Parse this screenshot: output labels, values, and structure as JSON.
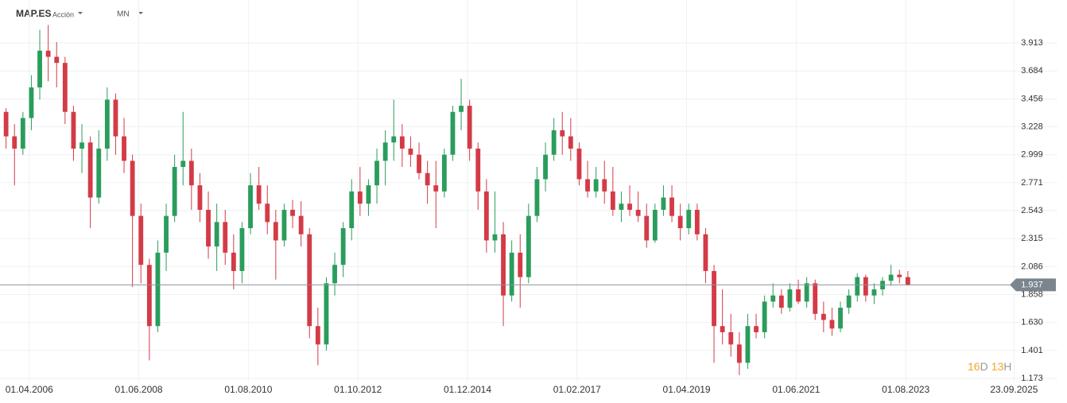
{
  "header": {
    "symbol": "MAP.ES",
    "asset_type": "Acción",
    "interval": "MN"
  },
  "countdown": {
    "days": "16",
    "days_unit": "D",
    "hours": "13",
    "hours_unit": "H"
  },
  "chart_data": {
    "type": "candlestick",
    "open": [
      3.35,
      3.15,
      3.05,
      3.3,
      3.55,
      3.85,
      3.8,
      3.75,
      3.35,
      3.05,
      3.1,
      2.65,
      3.05,
      3.45,
      3.15,
      2.95,
      2.5,
      2.1,
      1.6,
      2.2,
      2.5,
      2.9,
      2.95,
      2.75,
      2.55,
      2.25,
      2.45,
      2.2,
      2.05,
      2.4,
      2.75,
      2.6,
      2.45,
      2.3,
      2.55,
      2.5,
      2.35,
      1.6,
      1.45,
      1.95,
      2.1,
      2.4,
      2.7,
      2.6,
      2.75,
      2.95,
      3.1,
      3.15,
      3.05,
      3.0,
      2.85,
      2.75,
      2.7,
      3.0,
      3.35,
      3.4,
      3.05,
      2.7,
      2.3,
      2.35,
      1.85,
      2.2,
      2.0,
      2.5,
      2.8,
      3.0,
      3.2,
      3.15,
      3.05,
      2.8,
      2.7,
      2.8,
      2.7,
      2.55,
      2.6,
      2.55,
      2.5,
      2.3,
      2.55,
      2.65,
      2.5,
      2.4,
      2.55,
      2.35,
      2.05,
      1.6,
      1.55,
      1.45,
      1.3,
      1.6,
      1.55,
      1.8,
      1.85,
      1.75,
      1.9,
      1.8,
      1.95,
      1.7,
      1.65,
      1.58,
      1.75,
      1.85,
      2.0,
      1.85,
      1.9,
      1.97,
      2.02,
      2.0
    ],
    "high": [
      3.38,
      3.25,
      3.35,
      3.65,
      4.02,
      4.06,
      3.92,
      3.8,
      3.4,
      3.25,
      3.15,
      3.2,
      3.55,
      3.5,
      3.3,
      3.0,
      2.6,
      2.15,
      2.3,
      2.6,
      3.0,
      3.35,
      3.05,
      2.85,
      2.7,
      2.6,
      2.55,
      2.35,
      2.45,
      2.85,
      2.9,
      2.75,
      2.55,
      2.6,
      2.63,
      2.62,
      2.4,
      1.75,
      2.0,
      2.2,
      2.45,
      2.8,
      2.9,
      2.8,
      3.05,
      3.2,
      3.45,
      3.25,
      3.15,
      3.1,
      2.95,
      2.95,
      3.05,
      3.4,
      3.62,
      3.45,
      3.1,
      2.8,
      2.7,
      2.45,
      2.3,
      2.35,
      2.6,
      2.9,
      3.1,
      3.3,
      3.35,
      3.3,
      3.1,
      2.95,
      2.9,
      2.95,
      2.9,
      2.7,
      2.75,
      2.7,
      2.6,
      2.6,
      2.75,
      2.75,
      2.6,
      2.6,
      2.6,
      2.4,
      2.1,
      1.9,
      1.7,
      1.55,
      1.7,
      1.7,
      1.85,
      1.95,
      1.9,
      1.95,
      1.98,
      2.0,
      1.98,
      1.8,
      1.75,
      1.8,
      1.9,
      2.03,
      2.02,
      1.95,
      2.0,
      2.1,
      2.06,
      2.05
    ],
    "low": [
      3.05,
      2.75,
      3.0,
      3.2,
      3.45,
      3.6,
      3.55,
      3.25,
      2.95,
      2.85,
      2.4,
      2.6,
      2.95,
      3.0,
      2.85,
      1.92,
      1.95,
      1.32,
      1.55,
      2.05,
      2.45,
      2.75,
      2.55,
      2.45,
      2.15,
      2.05,
      2.1,
      1.9,
      1.95,
      2.35,
      2.55,
      2.35,
      1.98,
      2.25,
      2.4,
      2.25,
      1.5,
      1.28,
      1.4,
      1.85,
      2.0,
      2.3,
      2.5,
      2.5,
      2.6,
      2.75,
      2.95,
      2.9,
      2.9,
      2.8,
      2.6,
      2.4,
      2.65,
      2.95,
      3.2,
      2.95,
      2.55,
      2.2,
      2.2,
      1.6,
      1.8,
      1.75,
      1.95,
      2.45,
      2.7,
      2.95,
      3.0,
      2.95,
      2.75,
      2.65,
      2.65,
      2.6,
      2.5,
      2.45,
      2.5,
      2.45,
      2.24,
      2.28,
      2.5,
      2.45,
      2.3,
      2.35,
      2.3,
      1.95,
      1.3,
      1.45,
      1.35,
      1.2,
      1.25,
      1.5,
      1.5,
      1.75,
      1.7,
      1.72,
      1.78,
      1.75,
      1.65,
      1.55,
      1.52,
      1.55,
      1.7,
      1.8,
      1.8,
      1.78,
      1.85,
      1.93,
      1.95,
      1.93
    ],
    "close": [
      3.15,
      3.05,
      3.3,
      3.55,
      3.85,
      3.8,
      3.75,
      3.35,
      3.05,
      3.1,
      2.65,
      3.05,
      3.45,
      3.15,
      2.95,
      2.5,
      2.1,
      1.6,
      2.2,
      2.5,
      2.9,
      2.95,
      2.75,
      2.55,
      2.25,
      2.45,
      2.2,
      2.05,
      2.4,
      2.75,
      2.6,
      2.45,
      2.3,
      2.55,
      2.5,
      2.35,
      1.6,
      1.45,
      1.95,
      2.1,
      2.4,
      2.7,
      2.6,
      2.75,
      2.95,
      3.1,
      3.15,
      3.05,
      3.0,
      2.85,
      2.75,
      2.7,
      3.0,
      3.35,
      3.4,
      3.05,
      2.7,
      2.3,
      2.35,
      1.85,
      2.2,
      2.0,
      2.5,
      2.8,
      3.0,
      3.2,
      3.15,
      3.05,
      2.8,
      2.7,
      2.8,
      2.7,
      2.55,
      2.6,
      2.55,
      2.5,
      2.3,
      2.55,
      2.65,
      2.5,
      2.4,
      2.55,
      2.35,
      2.05,
      1.6,
      1.55,
      1.45,
      1.3,
      1.6,
      1.55,
      1.8,
      1.85,
      1.75,
      1.9,
      1.8,
      1.95,
      1.7,
      1.65,
      1.58,
      1.75,
      1.85,
      2.0,
      1.85,
      1.9,
      1.97,
      2.02,
      2.0,
      1.937
    ],
    "up_color": "#2a9d5c",
    "down_color": "#d33b47",
    "last_price": 1.937,
    "xlim": [
      -0.72,
      124.75
    ],
    "xticks": [
      {
        "value": 2.75,
        "label": "01.04.2006"
      },
      {
        "value": 15.75,
        "label": "01.06.2008"
      },
      {
        "value": 28.75,
        "label": "01.08.2010"
      },
      {
        "value": 41.75,
        "label": "01.10.2012"
      },
      {
        "value": 54.75,
        "label": "01.12.2014"
      },
      {
        "value": 67.75,
        "label": "01.02.2017"
      },
      {
        "value": 80.75,
        "label": "01.04.2019"
      },
      {
        "value": 93.75,
        "label": "01.06.2021"
      },
      {
        "value": 106.75,
        "label": "01.08.2023"
      },
      {
        "value": 119.6,
        "label": "23.09.2025"
      }
    ],
    "ylim": [
      1.147,
      4.264
    ],
    "yticks": [
      1.173,
      1.401,
      {
        "value": 1.63,
        "label": "1.630"
      },
      1.858,
      2.086,
      2.315,
      2.543,
      2.771,
      2.999,
      3.228,
      3.456,
      3.684,
      3.913
    ],
    "grid": true
  }
}
